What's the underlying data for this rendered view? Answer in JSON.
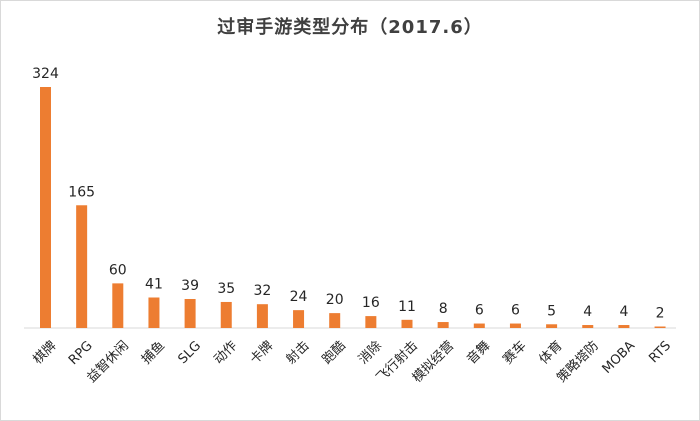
{
  "chart_data": {
    "type": "bar",
    "title": "过审手游类型分布（2017.6）",
    "categories": [
      "棋牌",
      "RPG",
      "益智休闲",
      "捕鱼",
      "SLG",
      "动作",
      "卡牌",
      "射击",
      "跑酷",
      "消除",
      "飞行射击",
      "模拟经营",
      "音舞",
      "赛车",
      "体育",
      "策略塔防",
      "MOBA",
      "RTS"
    ],
    "values": [
      324,
      165,
      60,
      41,
      39,
      35,
      32,
      24,
      20,
      16,
      11,
      8,
      6,
      6,
      5,
      4,
      4,
      2
    ],
    "data_labels": [
      "324",
      "165",
      "60",
      "41",
      "39",
      "35",
      "32",
      "24",
      "20",
      "16",
      "11",
      "8",
      "6",
      "6",
      "5",
      "4",
      "4",
      "2"
    ],
    "ylim": [
      0,
      324
    ],
    "grid": false,
    "legend": "none",
    "bar_color": "#ed7d31",
    "xlabel": "",
    "ylabel": ""
  }
}
